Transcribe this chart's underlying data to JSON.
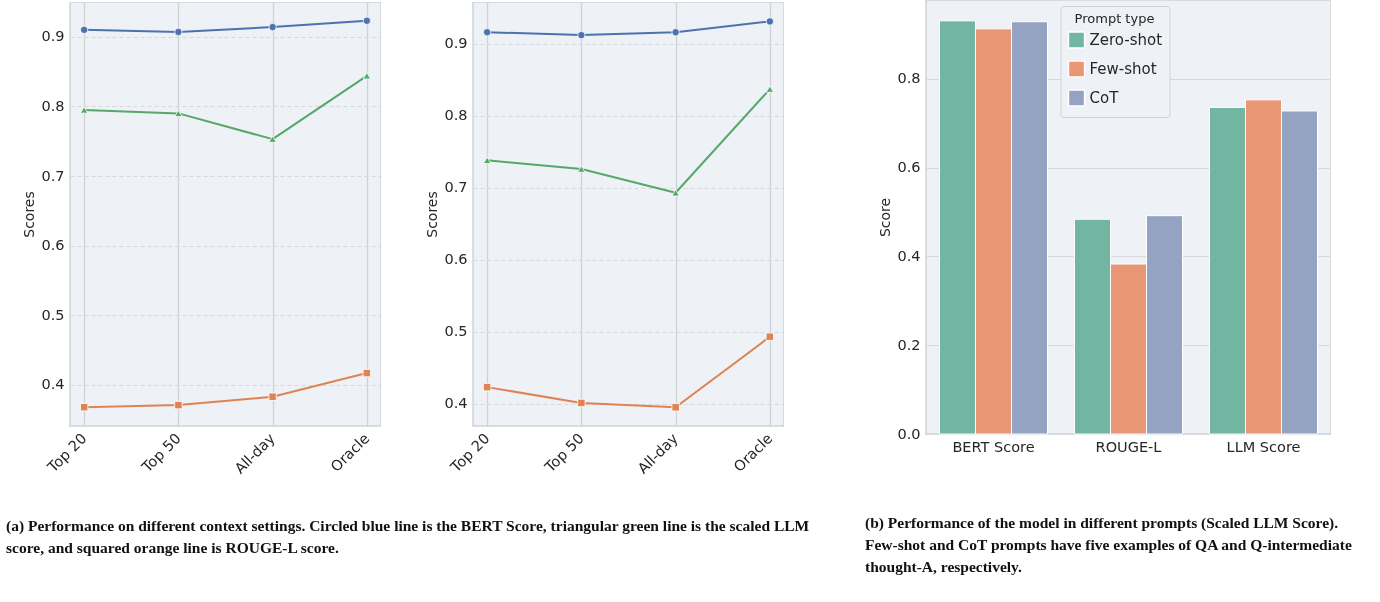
{
  "chart_data": [
    {
      "type": "line",
      "ylabel": "Scores",
      "categories": [
        "Top 20",
        "Top 50",
        "All-day",
        "Oracle"
      ],
      "ylim": [
        0.341,
        0.95
      ],
      "yticks": [
        0.4,
        0.5,
        0.6,
        0.7,
        0.8,
        0.9
      ],
      "grid": true,
      "legend": false,
      "series": [
        {
          "color": "#4c72b0",
          "marker": "circle",
          "values": [
            0.91,
            0.907,
            0.914,
            0.923
          ]
        },
        {
          "color": "#55a868",
          "marker": "triangle",
          "values": [
            0.795,
            0.79,
            0.753,
            0.844
          ]
        },
        {
          "color": "#dd8452",
          "marker": "square",
          "values": [
            0.368,
            0.371,
            0.383,
            0.417
          ]
        }
      ],
      "annotations": [
        "(a) Performance on different context settings. Circled blue line is the BERT Score, triangular green line is the scaled LLM score, and squared orange line is ROUGE-L score."
      ]
    },
    {
      "type": "line",
      "ylabel": "Scores",
      "categories": [
        "Top 20",
        "Top 50",
        "All-day",
        "Oracle"
      ],
      "ylim": [
        0.369,
        0.958
      ],
      "yticks": [
        0.4,
        0.5,
        0.6,
        0.7,
        0.8,
        0.9
      ],
      "grid": true,
      "legend": false,
      "series": [
        {
          "color": "#4c72b0",
          "marker": "circle",
          "values": [
            0.916,
            0.912,
            0.916,
            0.931
          ]
        },
        {
          "color": "#55a868",
          "marker": "triangle",
          "values": [
            0.738,
            0.726,
            0.693,
            0.837
          ]
        },
        {
          "color": "#dd8452",
          "marker": "square",
          "values": [
            0.423,
            0.401,
            0.395,
            0.493
          ]
        }
      ]
    },
    {
      "type": "bar",
      "ylabel": "Score",
      "categories": [
        "BERT Score",
        "ROUGE-L",
        "LLM Score"
      ],
      "ylim": [
        0,
        0.978
      ],
      "yticks": [
        {
          "value": 0,
          "label": "0.0"
        },
        0.2,
        0.4,
        0.6,
        0.8
      ],
      "grid": "y",
      "legend": "top",
      "legend_title": "Prompt type",
      "series": [
        {
          "name": "Zero-shot",
          "color": "#72b6a1",
          "values": [
            0.931,
            0.484,
            0.736
          ]
        },
        {
          "name": "Few-shot",
          "color": "#e99675",
          "values": [
            0.913,
            0.383,
            0.753
          ]
        },
        {
          "name": "CoT",
          "color": "#95a3c3",
          "values": [
            0.929,
            0.492,
            0.728
          ]
        }
      ],
      "annotations": [
        "(b) Performance of the model in different prompts (Scaled LLM Score). Few-shot and CoT prompts have five examples of QA and Q-intermediate thought-A, respectively."
      ]
    }
  ]
}
